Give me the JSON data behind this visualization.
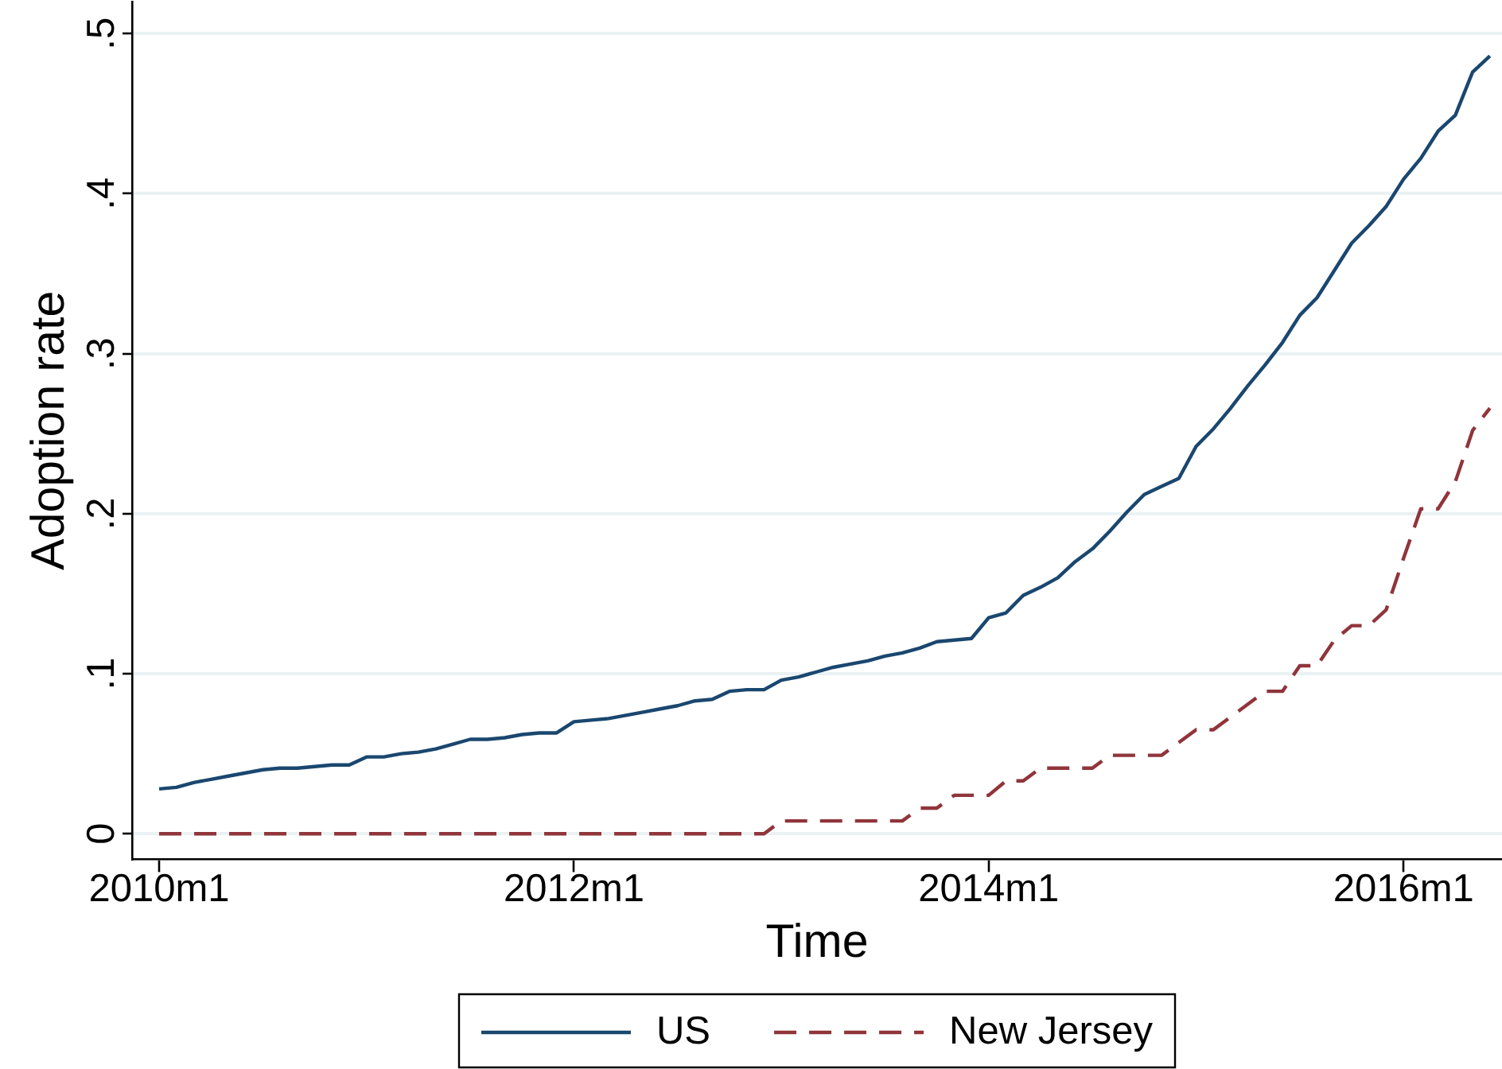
{
  "chart_data": {
    "type": "line",
    "xlabel": "Time",
    "ylabel": "Adoption rate",
    "x": [
      "2010-01",
      "2010-02",
      "2010-03",
      "2010-04",
      "2010-05",
      "2010-06",
      "2010-07",
      "2010-08",
      "2010-09",
      "2010-10",
      "2010-11",
      "2010-12",
      "2011-01",
      "2011-02",
      "2011-03",
      "2011-04",
      "2011-05",
      "2011-06",
      "2011-07",
      "2011-08",
      "2011-09",
      "2011-10",
      "2011-11",
      "2011-12",
      "2012-01",
      "2012-02",
      "2012-03",
      "2012-04",
      "2012-05",
      "2012-06",
      "2012-07",
      "2012-08",
      "2012-09",
      "2012-10",
      "2012-11",
      "2012-12",
      "2013-01",
      "2013-02",
      "2013-03",
      "2013-04",
      "2013-05",
      "2013-06",
      "2013-07",
      "2013-08",
      "2013-09",
      "2013-10",
      "2013-11",
      "2013-12",
      "2014-01",
      "2014-02",
      "2014-03",
      "2014-04",
      "2014-05",
      "2014-06",
      "2014-07",
      "2014-08",
      "2014-09",
      "2014-10",
      "2014-11",
      "2014-12",
      "2015-01",
      "2015-02",
      "2015-03",
      "2015-04",
      "2015-05",
      "2015-06",
      "2015-07",
      "2015-08",
      "2015-09",
      "2015-10",
      "2015-11",
      "2015-12",
      "2016-01",
      "2016-02",
      "2016-03",
      "2016-04",
      "2016-05",
      "2016-06"
    ],
    "series": [
      {
        "name": "US",
        "color": "#1a476f",
        "line_style": "solid",
        "values": [
          0.028,
          0.029,
          0.032,
          0.034,
          0.036,
          0.038,
          0.04,
          0.041,
          0.041,
          0.042,
          0.043,
          0.043,
          0.048,
          0.048,
          0.05,
          0.051,
          0.053,
          0.056,
          0.059,
          0.059,
          0.06,
          0.062,
          0.063,
          0.063,
          0.07,
          0.071,
          0.072,
          0.074,
          0.076,
          0.078,
          0.08,
          0.083,
          0.084,
          0.089,
          0.09,
          0.09,
          0.096,
          0.098,
          0.101,
          0.104,
          0.106,
          0.108,
          0.111,
          0.113,
          0.116,
          0.12,
          0.121,
          0.122,
          0.135,
          0.138,
          0.149,
          0.154,
          0.16,
          0.17,
          0.178,
          0.189,
          0.201,
          0.212,
          0.217,
          0.222,
          0.242,
          0.253,
          0.266,
          0.28,
          0.293,
          0.307,
          0.324,
          0.335,
          0.352,
          0.369,
          0.38,
          0.392,
          0.409,
          0.422,
          0.439,
          0.449,
          0.476,
          0.486
        ]
      },
      {
        "name": "New Jersey",
        "color": "#90353b",
        "line_style": "dashed",
        "values": [
          0,
          0,
          0,
          0,
          0,
          0,
          0,
          0,
          0,
          0,
          0,
          0,
          0,
          0,
          0,
          0,
          0,
          0,
          0,
          0,
          0,
          0,
          0,
          0,
          0,
          0,
          0,
          0,
          0,
          0,
          0,
          0,
          0,
          0,
          0,
          0,
          0.008,
          0.008,
          0.008,
          0.008,
          0.008,
          0.008,
          0.008,
          0.008,
          0.016,
          0.016,
          0.024,
          0.024,
          0.024,
          0.033,
          0.033,
          0.041,
          0.041,
          0.041,
          0.041,
          0.049,
          0.049,
          0.049,
          0.049,
          0.057,
          0.065,
          0.065,
          0.073,
          0.081,
          0.089,
          0.089,
          0.105,
          0.105,
          0.121,
          0.13,
          0.13,
          0.14,
          0.172,
          0.203,
          0.203,
          0.22,
          0.252,
          0.266
        ]
      }
    ],
    "xlim": [
      "2009-11-14",
      "2016-06-22"
    ],
    "xticks": [
      {
        "value": "2010-01",
        "label": "2010m1"
      },
      {
        "value": "2012-01",
        "label": "2012m1"
      },
      {
        "value": "2014-01",
        "label": "2014m1"
      },
      {
        "value": "2016-01",
        "label": "2016m1"
      }
    ],
    "ylim": [
      -0.016,
      0.52
    ],
    "yticks": [
      0,
      {
        "value": 0.1,
        "label": ".1"
      },
      {
        "value": 0.2,
        "label": ".2"
      },
      {
        "value": 0.3,
        "label": ".3"
      },
      {
        "value": 0.4,
        "label": ".4"
      },
      {
        "value": 0.5,
        "label": ".5"
      }
    ],
    "grid": "y",
    "legend": "bottom"
  }
}
